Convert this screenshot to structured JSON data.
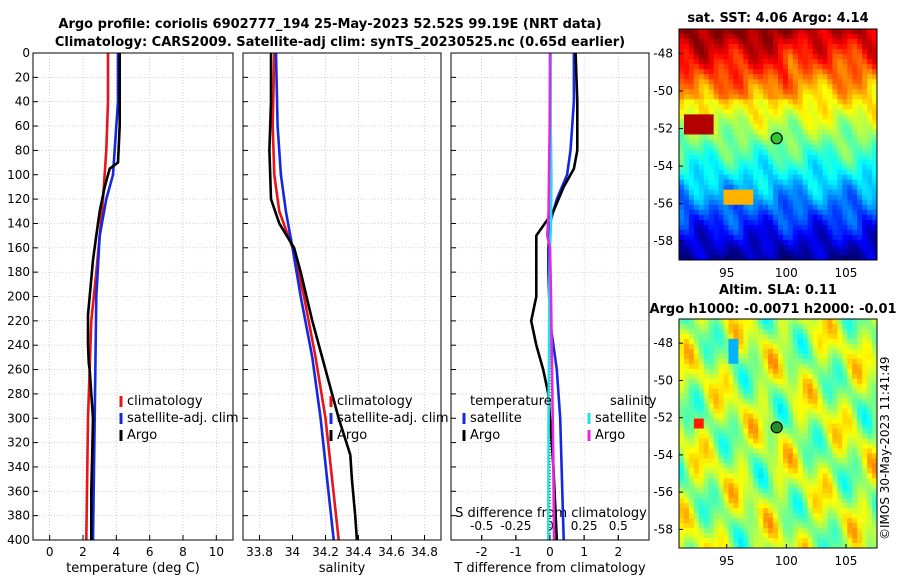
{
  "title": {
    "line1": "Argo profile: coriolis 6902777_194 25-May-2023 52.52S 99.19E (NRT data)",
    "line2": "Climatology: CARS2009. Satellite-adj clim: synTS_20230525.nc (0.65d earlier)"
  },
  "colors": {
    "climatology": "#e8141a",
    "satellite": "#1428e0",
    "argo": "#000000",
    "sat_salinity": "#22e0e8",
    "argo_salinity": "#e826e0"
  },
  "chart_data": [
    {
      "id": "temperature",
      "type": "line",
      "xlabel": "temperature (deg C)",
      "xlim": [
        -1,
        11
      ],
      "xticks": [
        0,
        2,
        4,
        6,
        8,
        10
      ],
      "xtick_labels": [
        "0",
        "2",
        "4",
        "6",
        "8",
        "10"
      ],
      "ylim": [
        400,
        0
      ],
      "yticks": [
        0,
        20,
        40,
        60,
        80,
        100,
        120,
        140,
        160,
        180,
        200,
        220,
        240,
        260,
        280,
        300,
        320,
        340,
        360,
        380,
        400
      ],
      "ytick_labels": [
        "0",
        "20",
        "40",
        "60",
        "80",
        "100",
        "120",
        "140",
        "160",
        "180",
        "200",
        "220",
        "240",
        "260",
        "280",
        "300",
        "320",
        "340",
        "360",
        "380",
        "400"
      ],
      "series": [
        {
          "name": "climatology",
          "color": "climatology",
          "depth": [
            0,
            40,
            80,
            120,
            150,
            180,
            220,
            300,
            400
          ],
          "values": [
            3.5,
            3.5,
            3.4,
            3.2,
            3.0,
            2.8,
            2.5,
            2.3,
            2.2
          ]
        },
        {
          "name": "satellite-adj. clim",
          "color": "satellite",
          "depth": [
            0,
            40,
            60,
            100,
            120,
            150,
            200,
            300,
            400
          ],
          "values": [
            4.1,
            4.1,
            4.0,
            3.8,
            3.4,
            3.0,
            2.8,
            2.7,
            2.6
          ]
        },
        {
          "name": "Argo",
          "color": "argo",
          "depth": [
            0,
            20,
            60,
            90,
            95,
            110,
            130,
            150,
            170,
            200,
            215,
            240,
            255,
            260,
            280,
            300,
            330,
            360,
            400
          ],
          "values": [
            4.2,
            4.2,
            4.2,
            4.1,
            3.6,
            3.3,
            3.0,
            2.8,
            2.6,
            2.4,
            2.3,
            2.3,
            2.35,
            2.4,
            2.5,
            2.6,
            2.55,
            2.5,
            2.5
          ]
        }
      ],
      "legend": [
        {
          "label": "climatology",
          "color": "climatology"
        },
        {
          "label": "satellite-adj. clim",
          "color": "satellite"
        },
        {
          "label": "Argo",
          "color": "argo"
        }
      ]
    },
    {
      "id": "salinity",
      "type": "line",
      "xlabel": "salinity",
      "xlim": [
        33.7,
        34.9
      ],
      "xticks": [
        33.8,
        34,
        34.2,
        34.4,
        34.6,
        34.8
      ],
      "xtick_labels": [
        "33.8",
        "34",
        "34.2",
        "34.4",
        "34.6",
        "34.8"
      ],
      "ylim": [
        400,
        0
      ],
      "series": [
        {
          "name": "climatology",
          "color": "climatology",
          "depth": [
            0,
            60,
            100,
            130,
            160,
            200,
            250,
            300,
            350,
            400
          ],
          "values": [
            33.89,
            33.88,
            33.89,
            33.92,
            34.0,
            34.07,
            34.14,
            34.2,
            34.24,
            34.28
          ]
        },
        {
          "name": "satellite-adj. clim",
          "color": "satellite",
          "depth": [
            0,
            60,
            100,
            130,
            160,
            200,
            250,
            300,
            350,
            400
          ],
          "values": [
            33.9,
            33.91,
            33.93,
            33.96,
            34.0,
            34.05,
            34.12,
            34.17,
            34.21,
            34.25
          ]
        },
        {
          "name": "Argo",
          "color": "argo",
          "depth": [
            0,
            40,
            80,
            120,
            140,
            160,
            180,
            220,
            260,
            300,
            330,
            350,
            380,
            400
          ],
          "values": [
            33.87,
            33.87,
            33.86,
            33.87,
            33.92,
            34.01,
            34.05,
            34.12,
            34.2,
            34.28,
            34.35,
            34.36,
            34.38,
            34.39
          ]
        }
      ],
      "legend": [
        {
          "label": "climatology",
          "color": "climatology"
        },
        {
          "label": "satellite-adj. clim",
          "color": "satellite"
        },
        {
          "label": "Argo",
          "color": "argo"
        }
      ]
    },
    {
      "id": "difference",
      "type": "line",
      "xlabel": "T difference from climatology",
      "xlim": [
        -2.9,
        2.9
      ],
      "xticks": [
        -2,
        -1,
        0,
        1,
        2
      ],
      "xtick_labels": [
        "-2",
        "-1",
        "0",
        "1",
        "2"
      ],
      "ylim": [
        400,
        0
      ],
      "top_axis_label": "S difference from climatology",
      "top_ticks": [
        -0.5,
        -0.25,
        0,
        0.25,
        0.5
      ],
      "top_tick_labels": [
        "-0.5",
        "-0.25",
        "0",
        "0.25",
        "0.5"
      ],
      "series": [
        {
          "name": "satellite (temperature)",
          "color": "satellite",
          "depth": [
            0,
            40,
            80,
            100,
            120,
            140,
            160,
            180,
            220,
            260,
            300,
            400
          ],
          "values": [
            0.7,
            0.7,
            0.6,
            0.5,
            0.2,
            0.0,
            -0.05,
            -0.05,
            0.0,
            0.2,
            0.3,
            0.4
          ]
        },
        {
          "name": "Argo (temperature)",
          "color": "argo",
          "depth": [
            0,
            40,
            80,
            95,
            110,
            130,
            150,
            180,
            200,
            220,
            240,
            260,
            280,
            300,
            340,
            400
          ],
          "values": [
            0.75,
            0.8,
            0.8,
            0.7,
            0.4,
            0.1,
            -0.4,
            -0.4,
            -0.4,
            -0.55,
            -0.4,
            -0.2,
            -0.05,
            0.0,
            0.1,
            0.2
          ]
        },
        {
          "name": "satellite (salinity)",
          "color": "sat_salinity",
          "depth": [
            0,
            60,
            100,
            140,
            160,
            200,
            300,
            400
          ],
          "values": [
            0.02,
            0.02,
            0.04,
            0.03,
            0.0,
            -0.02,
            -0.04,
            -0.05
          ]
        },
        {
          "name": "Argo (salinity)",
          "color": "argo_salinity",
          "depth": [
            0,
            60,
            100,
            130,
            150,
            160,
            200,
            300,
            340,
            400
          ],
          "values": [
            0.0,
            -0.01,
            -0.03,
            -0.04,
            -0.08,
            0.0,
            0.03,
            0.08,
            0.1,
            0.12
          ]
        }
      ],
      "legend_left": {
        "title": "temperature",
        "items": [
          {
            "label": "satellite",
            "color": "satellite"
          },
          {
            "label": "Argo",
            "color": "argo"
          }
        ]
      },
      "legend_right": {
        "title": "salinity",
        "items": [
          {
            "label": "satellite",
            "color": "sat_salinity"
          },
          {
            "label": "Argo",
            "color": "argo_salinity"
          }
        ]
      }
    }
  ],
  "maps": [
    {
      "id": "sst-map",
      "title": "sat. SST: 4.06 Argo: 4.14",
      "title2": "",
      "field": "sst",
      "xlim": [
        91,
        107.6
      ],
      "ylim": [
        -59,
        -46.7
      ],
      "xticks": [
        95,
        100,
        105
      ],
      "xtick_labels": [
        "95",
        "100",
        "105"
      ],
      "yticks": [
        -48,
        -50,
        -52,
        -54,
        -56,
        -58
      ],
      "ytick_labels": [
        "-48",
        "-50",
        "-52",
        "-54",
        "-56",
        "-58"
      ],
      "marker": {
        "lon": 99.19,
        "lat": -52.52,
        "fill": "#2ec832"
      }
    },
    {
      "id": "sla-map",
      "title": "Altim. SLA: 0.11",
      "title2": "Argo h1000: -0.0071 h2000: -0.01",
      "field": "sla",
      "xlim": [
        91,
        107.6
      ],
      "ylim": [
        -59,
        -46.7
      ],
      "xticks": [
        95,
        100,
        105
      ],
      "xtick_labels": [
        "95",
        "100",
        "105"
      ],
      "yticks": [
        -48,
        -50,
        -52,
        -54,
        -56,
        -58
      ],
      "ytick_labels": [
        "-48",
        "-50",
        "-52",
        "-54",
        "-56",
        "-58"
      ],
      "marker": {
        "lon": 99.19,
        "lat": -52.52,
        "fill": "#2a8a2a"
      }
    }
  ],
  "copyright": "©IMOS 30-May-2023 11:41:49"
}
